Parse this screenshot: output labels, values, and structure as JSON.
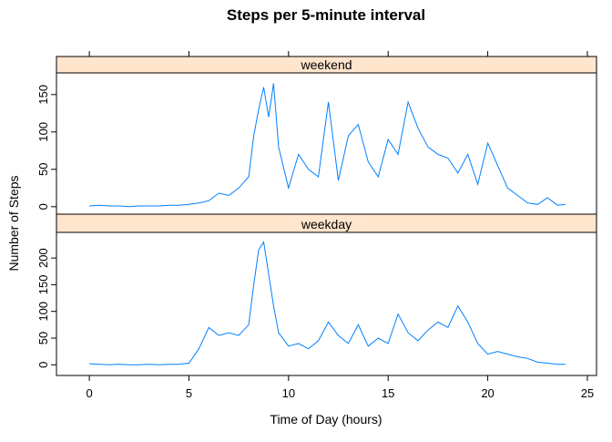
{
  "title": "Steps per 5-minute interval",
  "xlabel": "Time of Day (hours)",
  "ylabel": "Number of Steps",
  "xlim": [
    -1.65,
    25.46
  ],
  "xticks": [
    0,
    5,
    10,
    15,
    20,
    25
  ],
  "chart_data": [
    {
      "type": "line",
      "strip": "weekend",
      "color": "#0080ff",
      "ylim": [
        -10,
        179
      ],
      "yticks": [
        0,
        50,
        100,
        150
      ],
      "x": [
        0,
        0.5,
        1,
        1.5,
        2,
        2.5,
        3,
        3.5,
        4,
        4.5,
        5,
        5.5,
        6,
        6.5,
        7,
        7.5,
        8,
        8.25,
        8.5,
        8.75,
        9,
        9.25,
        9.5,
        10,
        10.5,
        11,
        11.5,
        12,
        12.5,
        13,
        13.5,
        14,
        14.5,
        15,
        15.5,
        16,
        16.5,
        17,
        17.5,
        18,
        18.5,
        19,
        19.5,
        20,
        20.5,
        21,
        21.5,
        22,
        22.5,
        23,
        23.5,
        23.9
      ],
      "values": [
        1,
        2,
        1,
        1,
        0,
        1,
        1,
        1,
        2,
        2,
        3,
        5,
        8,
        18,
        15,
        25,
        40,
        95,
        130,
        160,
        120,
        165,
        80,
        25,
        70,
        50,
        40,
        140,
        35,
        95,
        110,
        60,
        40,
        90,
        70,
        140,
        105,
        80,
        70,
        65,
        45,
        70,
        30,
        85,
        55,
        25,
        15,
        5,
        3,
        12,
        2,
        3
      ]
    },
    {
      "type": "line",
      "strip": "weekday",
      "color": "#0080ff",
      "ylim": [
        -20,
        248
      ],
      "yticks": [
        0,
        50,
        100,
        150,
        200
      ],
      "x": [
        0,
        0.5,
        1,
        1.5,
        2,
        2.5,
        3,
        3.5,
        4,
        4.5,
        5,
        5.5,
        6,
        6.5,
        7,
        7.5,
        8,
        8.25,
        8.5,
        8.75,
        9,
        9.25,
        9.5,
        10,
        10.5,
        11,
        11.5,
        12,
        12.5,
        13,
        13.5,
        14,
        14.5,
        15,
        15.5,
        16,
        16.5,
        17,
        17.5,
        18,
        18.5,
        19,
        19.5,
        20,
        20.5,
        21,
        21.5,
        22,
        22.5,
        23,
        23.5,
        23.9
      ],
      "values": [
        2,
        1,
        0,
        1,
        0,
        0,
        1,
        0,
        1,
        1,
        3,
        30,
        70,
        55,
        60,
        55,
        75,
        150,
        215,
        230,
        170,
        110,
        60,
        35,
        40,
        30,
        45,
        80,
        55,
        40,
        75,
        35,
        50,
        40,
        95,
        60,
        45,
        65,
        80,
        70,
        110,
        80,
        40,
        20,
        25,
        20,
        15,
        12,
        5,
        3,
        1,
        1
      ]
    }
  ]
}
